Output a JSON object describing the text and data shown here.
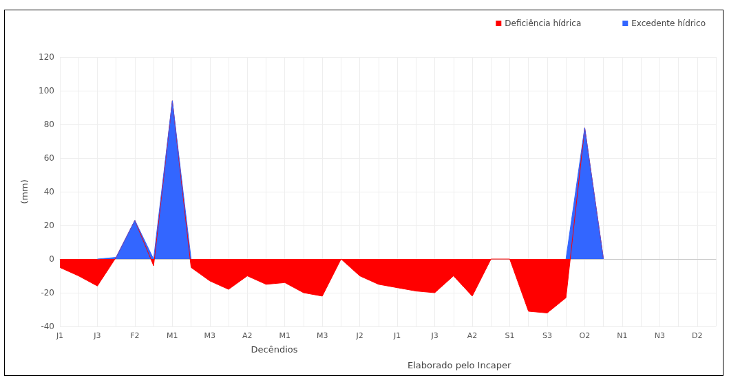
{
  "chart_data": {
    "type": "area",
    "xlabel": "Decêndios",
    "ylabel": "(mm)",
    "categories": [
      "J1",
      null,
      "J3",
      null,
      "F2",
      null,
      "M1",
      null,
      "M3",
      null,
      "A2",
      null,
      "M1",
      null,
      "M3",
      null,
      "J2",
      null,
      "J1",
      null,
      "J3",
      null,
      "A2",
      null,
      "S1",
      null,
      "S3",
      null,
      "O2",
      null,
      "N1",
      null,
      "N3",
      null,
      "D2",
      null
    ],
    "series": [
      {
        "name": "Deficiência hídrica",
        "color": "#ff0000",
        "values": [
          -5,
          -10,
          -16,
          1,
          23,
          -4,
          94,
          -5,
          -13,
          -18,
          -10,
          -15,
          -14,
          -20,
          -22,
          0,
          -10,
          -15,
          -17,
          -19,
          -20,
          -10,
          -22,
          0,
          0,
          -31,
          -32,
          -23,
          78,
          0,
          null,
          null,
          null,
          null,
          null,
          null
        ]
      },
      {
        "name": "Excedente hídrico",
        "color": "#3366ff",
        "values": [
          null,
          null,
          0,
          1,
          23,
          0,
          94,
          0,
          null,
          null,
          null,
          null,
          null,
          null,
          null,
          null,
          null,
          null,
          null,
          null,
          null,
          null,
          null,
          null,
          null,
          null,
          null,
          0,
          78,
          0,
          null,
          null,
          null,
          null,
          null,
          null
        ]
      }
    ],
    "ylim": [
      -40,
      120
    ],
    "yticks": [
      -40,
      -20,
      0,
      20,
      40,
      60,
      80,
      100,
      120
    ],
    "grid": true,
    "legend": "top right",
    "annotations": [
      "Elaborado pelo Incaper"
    ]
  }
}
